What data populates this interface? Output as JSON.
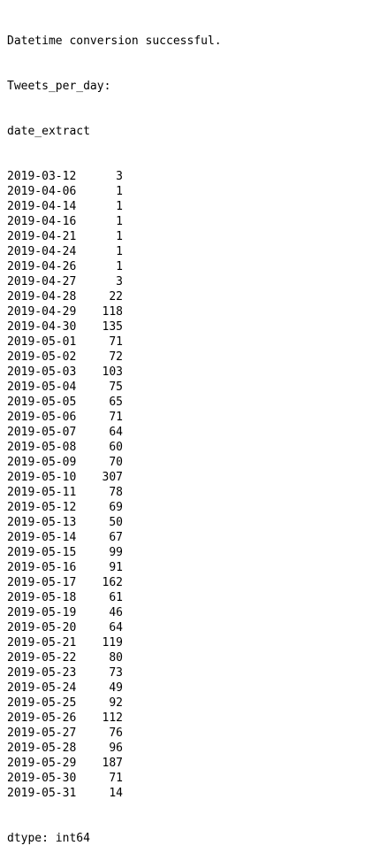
{
  "console": {
    "status_line": "Datetime conversion successful.",
    "series_name": "Tweets_per_day:",
    "index_name": "date_extract",
    "rows": [
      {
        "date": "2019-03-12",
        "count": "3"
      },
      {
        "date": "2019-04-06",
        "count": "1"
      },
      {
        "date": "2019-04-14",
        "count": "1"
      },
      {
        "date": "2019-04-16",
        "count": "1"
      },
      {
        "date": "2019-04-21",
        "count": "1"
      },
      {
        "date": "2019-04-24",
        "count": "1"
      },
      {
        "date": "2019-04-26",
        "count": "1"
      },
      {
        "date": "2019-04-27",
        "count": "3"
      },
      {
        "date": "2019-04-28",
        "count": "22"
      },
      {
        "date": "2019-04-29",
        "count": "118"
      },
      {
        "date": "2019-04-30",
        "count": "135"
      },
      {
        "date": "2019-05-01",
        "count": "71"
      },
      {
        "date": "2019-05-02",
        "count": "72"
      },
      {
        "date": "2019-05-03",
        "count": "103"
      },
      {
        "date": "2019-05-04",
        "count": "75"
      },
      {
        "date": "2019-05-05",
        "count": "65"
      },
      {
        "date": "2019-05-06",
        "count": "71"
      },
      {
        "date": "2019-05-07",
        "count": "64"
      },
      {
        "date": "2019-05-08",
        "count": "60"
      },
      {
        "date": "2019-05-09",
        "count": "70"
      },
      {
        "date": "2019-05-10",
        "count": "307"
      },
      {
        "date": "2019-05-11",
        "count": "78"
      },
      {
        "date": "2019-05-12",
        "count": "69"
      },
      {
        "date": "2019-05-13",
        "count": "50"
      },
      {
        "date": "2019-05-14",
        "count": "67"
      },
      {
        "date": "2019-05-15",
        "count": "99"
      },
      {
        "date": "2019-05-16",
        "count": "91"
      },
      {
        "date": "2019-05-17",
        "count": "162"
      },
      {
        "date": "2019-05-18",
        "count": "61"
      },
      {
        "date": "2019-05-19",
        "count": "46"
      },
      {
        "date": "2019-05-20",
        "count": "64"
      },
      {
        "date": "2019-05-21",
        "count": "119"
      },
      {
        "date": "2019-05-22",
        "count": "80"
      },
      {
        "date": "2019-05-23",
        "count": "73"
      },
      {
        "date": "2019-05-24",
        "count": "49"
      },
      {
        "date": "2019-05-25",
        "count": "92"
      },
      {
        "date": "2019-05-26",
        "count": "112"
      },
      {
        "date": "2019-05-27",
        "count": "76"
      },
      {
        "date": "2019-05-28",
        "count": "96"
      },
      {
        "date": "2019-05-29",
        "count": "187"
      },
      {
        "date": "2019-05-30",
        "count": "71"
      },
      {
        "date": "2019-05-31",
        "count": "14"
      }
    ],
    "dtype_line": "dtype: int64"
  }
}
